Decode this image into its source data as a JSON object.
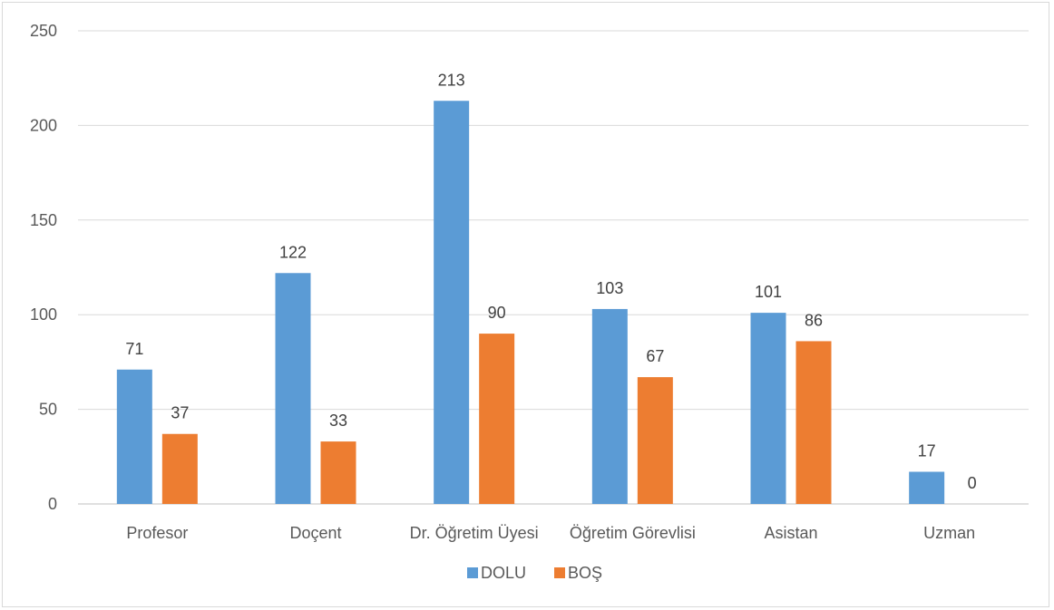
{
  "chart_data": {
    "type": "bar",
    "categories": [
      "Profesor",
      "Doçent",
      "Dr. Öğretim Üyesi",
      "Öğretim Görevlisi",
      "Asistan",
      "Uzman"
    ],
    "series": [
      {
        "name": "DOLU",
        "values": [
          71,
          122,
          213,
          103,
          101,
          17
        ],
        "color": "#5b9bd5"
      },
      {
        "name": "BOŞ",
        "values": [
          37,
          33,
          90,
          67,
          86,
          0
        ],
        "color": "#ed7d31"
      }
    ],
    "y_ticks": [
      "0",
      "50",
      "100",
      "150",
      "200",
      "250"
    ],
    "ylim": [
      0,
      250
    ],
    "grid": true,
    "legend_position": "bottom",
    "title": "",
    "xlabel": "",
    "ylabel": ""
  }
}
